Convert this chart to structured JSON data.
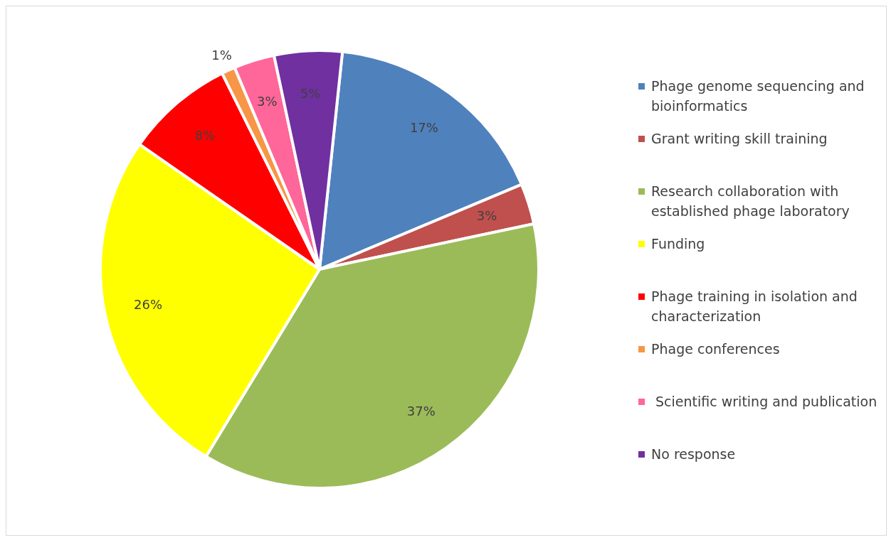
{
  "chart_data": {
    "type": "pie",
    "categories": [
      "Phage genome sequencing and bioinformatics",
      "Grant writing skill training",
      "Research collaboration with established phage laboratory",
      "Funding",
      "Phage training in isolation and characterization",
      "Phage conferences",
      " Scientific writing and publication",
      "No response"
    ],
    "values": [
      17,
      3,
      37,
      26,
      8,
      1,
      3,
      5
    ],
    "value_labels": [
      "17%",
      "3%",
      "37%",
      "26%",
      "8%",
      "1%",
      "3%",
      "5%"
    ],
    "colors": [
      "#4f81bd",
      "#c0504d",
      "#9bbb59",
      "#ffff00",
      "#ff0000",
      "#f79646",
      "#ff6699",
      "#7030a0"
    ],
    "legend": "right"
  }
}
